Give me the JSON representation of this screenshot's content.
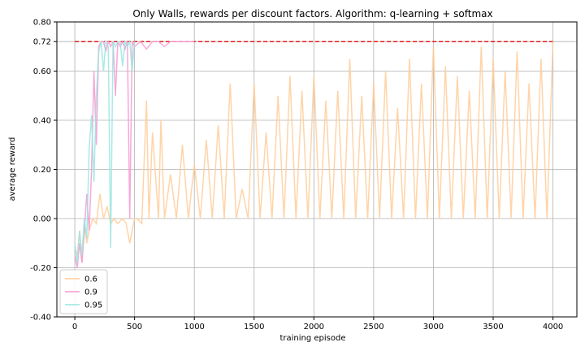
{
  "chart_data": {
    "type": "line",
    "title": "Only Walls, rewards per discount factors. Algorithm: q-learning + softmax",
    "xlabel": "training episode",
    "ylabel": "average reward",
    "xlim": [
      -150,
      4200
    ],
    "ylim": [
      -0.4,
      0.8
    ],
    "xticks": [
      0,
      500,
      1000,
      1500,
      2000,
      2500,
      3000,
      3500,
      4000
    ],
    "xtick_labels": [
      "0",
      "500",
      "1000",
      "1500",
      "2000",
      "2500",
      "3000",
      "3500",
      "4000"
    ],
    "yticks": [
      -0.4,
      -0.2,
      0.0,
      0.2,
      0.4,
      0.6,
      0.72,
      0.8
    ],
    "ytick_labels": [
      "-0.40",
      "-0.20",
      "0.00",
      "0.20",
      "0.40",
      "0.60",
      "0.72",
      "0.80"
    ],
    "grid": true,
    "legend_position": "lower-left",
    "reference_line": {
      "y": 0.72,
      "x_range": [
        0,
        4000
      ],
      "color": "#e41a1c",
      "style": "dashed"
    },
    "series": [
      {
        "name": "0.6",
        "color": "#ffcc99",
        "x": [
          0,
          20,
          40,
          60,
          80,
          100,
          120,
          150,
          180,
          210,
          240,
          270,
          300,
          330,
          360,
          400,
          430,
          460,
          500,
          520,
          560,
          600,
          620,
          650,
          700,
          720,
          750,
          800,
          850,
          900,
          950,
          1000,
          1050,
          1100,
          1150,
          1200,
          1250,
          1300,
          1350,
          1400,
          1450,
          1500,
          1550,
          1600,
          1650,
          1700,
          1750,
          1800,
          1850,
          1900,
          1950,
          2000,
          2050,
          2100,
          2150,
          2200,
          2250,
          2300,
          2350,
          2400,
          2450,
          2500,
          2550,
          2600,
          2650,
          2700,
          2750,
          2800,
          2850,
          2900,
          2950,
          3000,
          3050,
          3100,
          3150,
          3200,
          3250,
          3300,
          3350,
          3400,
          3450,
          3500,
          3550,
          3600,
          3650,
          3700,
          3750,
          3800,
          3850,
          3900,
          3950,
          4000
        ],
        "values": [
          -0.12,
          -0.15,
          -0.05,
          -0.18,
          -0.02,
          -0.1,
          -0.05,
          0.0,
          -0.02,
          0.1,
          0.0,
          0.05,
          -0.02,
          0.0,
          -0.02,
          0.0,
          -0.02,
          -0.1,
          0.0,
          0.0,
          -0.02,
          0.48,
          0.0,
          0.35,
          0.0,
          0.4,
          0.0,
          0.18,
          0.0,
          0.3,
          0.0,
          0.22,
          0.0,
          0.32,
          0.0,
          0.38,
          0.0,
          0.55,
          0.0,
          0.12,
          0.0,
          0.55,
          0.0,
          0.35,
          0.0,
          0.5,
          0.0,
          0.58,
          0.0,
          0.52,
          0.0,
          0.58,
          0.0,
          0.48,
          0.0,
          0.52,
          0.0,
          0.65,
          0.0,
          0.5,
          0.0,
          0.55,
          0.0,
          0.6,
          0.0,
          0.45,
          0.0,
          0.65,
          0.0,
          0.55,
          0.0,
          0.7,
          0.0,
          0.62,
          0.0,
          0.58,
          0.0,
          0.52,
          0.0,
          0.7,
          0.0,
          0.65,
          0.0,
          0.6,
          0.0,
          0.68,
          0.0,
          0.55,
          0.0,
          0.65,
          0.0,
          0.72
        ]
      },
      {
        "name": "0.9",
        "color": "#f799d1",
        "x": [
          0,
          20,
          40,
          60,
          80,
          100,
          120,
          140,
          160,
          180,
          200,
          220,
          240,
          260,
          280,
          300,
          320,
          340,
          360,
          380,
          400,
          420,
          440,
          460,
          480,
          500,
          550,
          600,
          650,
          700,
          750,
          800,
          850,
          900,
          950,
          1000
        ],
        "values": [
          -0.15,
          -0.2,
          -0.1,
          -0.18,
          -0.05,
          0.1,
          -0.05,
          0.2,
          0.6,
          0.3,
          0.7,
          0.72,
          0.72,
          0.68,
          0.72,
          0.7,
          0.72,
          0.5,
          0.72,
          0.7,
          0.72,
          0.69,
          0.72,
          0.0,
          0.72,
          0.7,
          0.72,
          0.69,
          0.72,
          0.72,
          0.7,
          0.72,
          0.72,
          0.72,
          0.72,
          0.72
        ]
      },
      {
        "name": "0.95",
        "color": "#99e6e0",
        "x": [
          0,
          20,
          40,
          60,
          80,
          100,
          120,
          140,
          160,
          180,
          200,
          220,
          240,
          260,
          280,
          300,
          320,
          340,
          360,
          380,
          400,
          420,
          440,
          460,
          480,
          500
        ],
        "values": [
          -0.1,
          -0.18,
          -0.05,
          -0.15,
          0.0,
          -0.08,
          0.28,
          0.42,
          0.15,
          0.5,
          0.68,
          0.72,
          0.6,
          0.72,
          0.7,
          -0.12,
          0.72,
          0.7,
          0.72,
          0.72,
          0.62,
          0.72,
          0.7,
          0.72,
          0.6,
          0.72
        ]
      }
    ]
  }
}
